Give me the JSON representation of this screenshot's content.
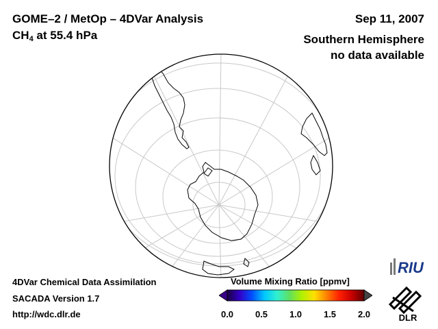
{
  "header": {
    "title": "GOME–2 / MetOp – 4DVar Analysis",
    "species_prefix": "CH",
    "species_subscript": "4",
    "species_suffix": " at 55.4 hPa",
    "date": "Sep 11, 2007",
    "hemisphere": "Southern Hemisphere",
    "status": "no data available"
  },
  "map": {
    "projection": "orthographic",
    "center": "south-pole",
    "graticule": true,
    "coastline_color": "#000000",
    "grid_color": "#c8c8c8"
  },
  "colorbar": {
    "title": "Volume Mixing Ratio [ppmv]",
    "min": 0.0,
    "max": 2.0,
    "ticks": [
      "0.0",
      "0.5",
      "1.0",
      "1.5",
      "2.0"
    ],
    "colors": [
      "#1a0040",
      "#3200c8",
      "#0050ff",
      "#00c8ff",
      "#30f0d0",
      "#60e060",
      "#b0f000",
      "#ffe000",
      "#ff8000",
      "#ff2000",
      "#c80000",
      "#600000"
    ]
  },
  "footer": {
    "line1": "4DVar Chemical Data Assimilation",
    "line2": "SACADA Version 1.7",
    "line3": "http://wdc.dlr.de"
  },
  "logos": {
    "riu_text": "RIU",
    "dlr_text": "DLR"
  }
}
